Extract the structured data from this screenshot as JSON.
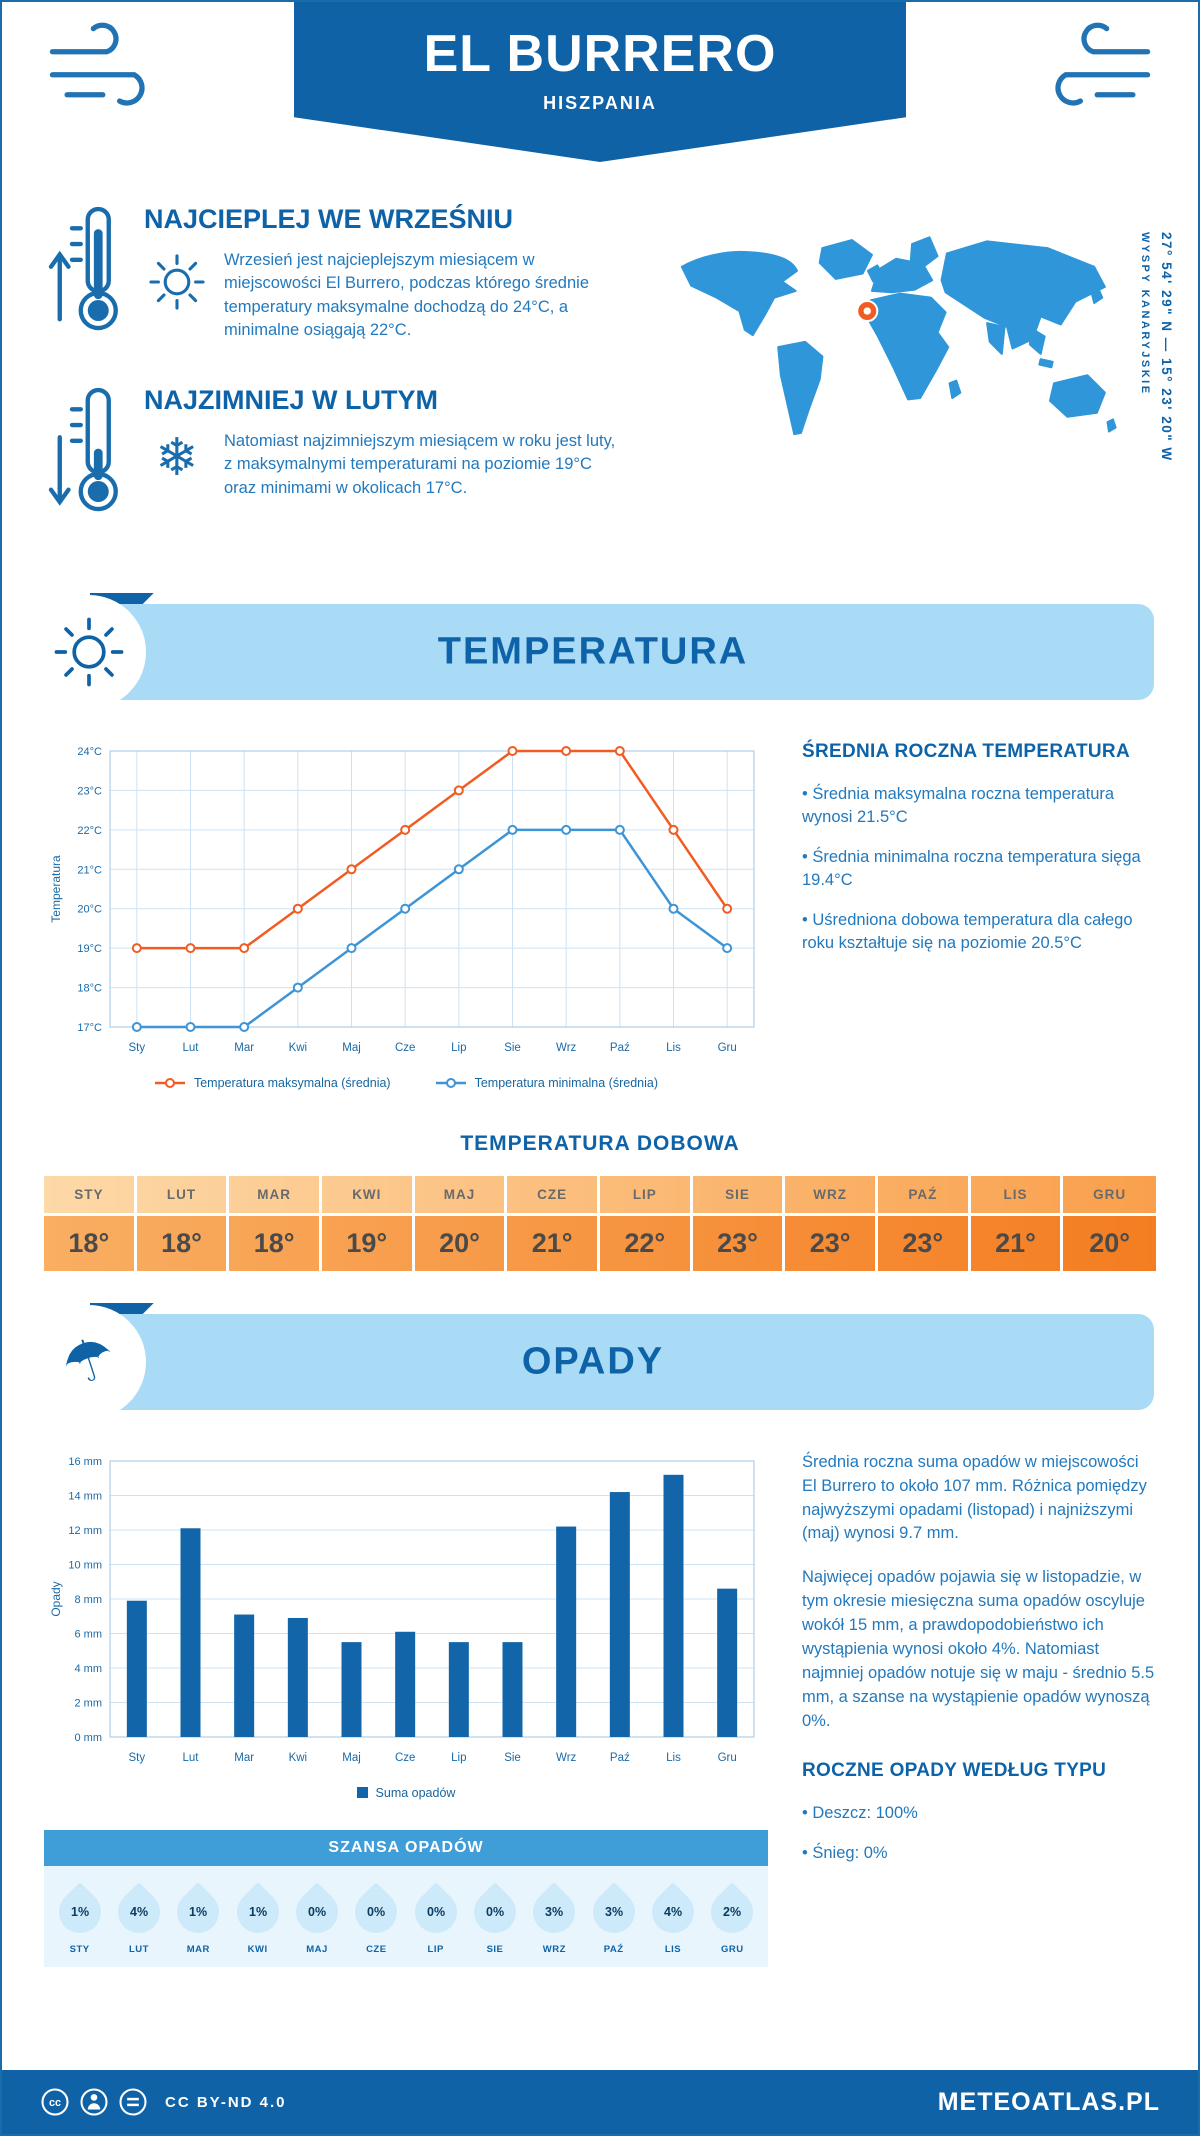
{
  "page": {
    "title": "EL BURRERO",
    "subtitle": "HISZPANIA"
  },
  "highlights": [
    {
      "heading": "NAJCIEPLEJ WE WRZEŚNIU",
      "icon": "thermometer-up",
      "secondary_icon": "sun",
      "text": "Wrzesień jest najcieplejszym miesiącem w miejscowości El Burrero, podczas którego średnie temperatury maksymalne dochodzą do 24°C, a minimalne osiągają 22°C."
    },
    {
      "heading": "NAJZIMNIEJ W LUTYM",
      "icon": "thermometer-down",
      "secondary_icon": "snowflake",
      "text": "Natomiast najzimniejszym miesiącem w roku jest luty, z maksymalnymi temperaturami na poziomie 19°C oraz minimami w okolicach 17°C."
    }
  ],
  "map": {
    "coordinates": "27° 54' 29\" N — 15° 23' 20\" W",
    "region": "WYSPY KANARYJSKIE",
    "marker_color": "#f15c22"
  },
  "temperature_section": {
    "banner_title": "TEMPERATURA",
    "summary_heading": "ŚREDNIA ROCZNA TEMPERATURA",
    "summary_items": [
      "Średnia maksymalna roczna temperatura wynosi 21.5°C",
      "Średnia minimalna roczna temperatura sięga 19.4°C",
      "Uśredniona dobowa temperatura dla całego roku kształtuje się na poziomie 20.5°C"
    ]
  },
  "daily_table": {
    "title": "TEMPERATURA DOBOWA",
    "months": [
      "STY",
      "LUT",
      "MAR",
      "KWI",
      "MAJ",
      "CZE",
      "LIP",
      "SIE",
      "WRZ",
      "PAŹ",
      "LIS",
      "GRU"
    ],
    "values": [
      "18°",
      "18°",
      "18°",
      "19°",
      "20°",
      "21°",
      "22°",
      "23°",
      "23°",
      "23°",
      "21°",
      "20°"
    ]
  },
  "precipitation_section": {
    "banner_title": "OPADY",
    "paragraphs": [
      "Średnia roczna suma opadów w miejscowości El Burrero to około 107 mm. Różnica pomiędzy najwyższymi opadami (listopad) i najniższymi (maj) wynosi 9.7 mm.",
      "Najwięcej opadów pojawia się w listopadzie, w tym okresie miesięczna suma opadów oscyluje wokół 15 mm, a prawdopodobieństwo ich wystąpienia wynosi około 4%. Natomiast najmniej opadów notuje się w maju - średnio 5.5 mm, a szanse na wystąpienie opadów wynoszą 0%."
    ]
  },
  "precip_chance": {
    "title": "SZANSA OPADÓW",
    "months": [
      "STY",
      "LUT",
      "MAR",
      "KWI",
      "MAJ",
      "CZE",
      "LIP",
      "SIE",
      "WRZ",
      "PAŹ",
      "LIS",
      "GRU"
    ],
    "values": [
      "1%",
      "4%",
      "1%",
      "1%",
      "0%",
      "0%",
      "0%",
      "0%",
      "3%",
      "3%",
      "4%",
      "2%"
    ]
  },
  "precip_type": {
    "title": "ROCZNE OPADY WEDŁUG TYPU",
    "items": [
      "Deszcz: 100%",
      "Śnieg: 0%"
    ]
  },
  "chart_data": [
    {
      "type": "line",
      "title": "TEMPERATURA",
      "categories": [
        "Sty",
        "Lut",
        "Mar",
        "Kwi",
        "Maj",
        "Cze",
        "Lip",
        "Sie",
        "Wrz",
        "Paź",
        "Lis",
        "Gru"
      ],
      "series": [
        {
          "name": "Temperatura maksymalna (średnia)",
          "color": "#f15c22",
          "values": [
            19,
            19,
            19,
            20,
            21,
            22,
            23,
            24,
            24,
            24,
            22,
            20
          ]
        },
        {
          "name": "Temperatura minimalna (średnia)",
          "color": "#3d94d6",
          "values": [
            17,
            17,
            17,
            18,
            19,
            20,
            21,
            22,
            22,
            22,
            20,
            19
          ]
        }
      ],
      "xlabel": "",
      "ylabel": "Temperatura",
      "ylim": [
        17,
        24
      ],
      "ystep": 1,
      "ytick_suffix": "°C",
      "grid": true,
      "legend_position": "bottom"
    },
    {
      "type": "bar",
      "title": "OPADY",
      "categories": [
        "Sty",
        "Lut",
        "Mar",
        "Kwi",
        "Maj",
        "Cze",
        "Lip",
        "Sie",
        "Wrz",
        "Paź",
        "Lis",
        "Gru"
      ],
      "series": [
        {
          "name": "Suma opadów",
          "color": "#1165a8",
          "values": [
            7.9,
            12.1,
            7.1,
            6.9,
            5.5,
            6.1,
            5.5,
            5.5,
            12.2,
            14.2,
            15.2,
            8.6
          ]
        }
      ],
      "xlabel": "",
      "ylabel": "Opady",
      "ylim": [
        0,
        16
      ],
      "ystep": 2,
      "ytick_suffix": " mm",
      "grid": true,
      "legend_position": "bottom"
    }
  ],
  "footer": {
    "license": "CC BY-ND 4.0",
    "brand": "METEOATLAS.PL"
  },
  "colors": {
    "primary_dark_blue": "#0f62a6",
    "banner_light_blue": "#a9dbf6",
    "body_text_blue": "#2279bd",
    "accent_orange": "#f15c22",
    "line_min_blue": "#3d94d6",
    "bar_blue": "#1165a8",
    "map_blue": "#2e96d9",
    "drop_light_blue": "#cdeafa",
    "table_orange_left": "#f9ae62",
    "table_orange_right": "#f47d21"
  }
}
